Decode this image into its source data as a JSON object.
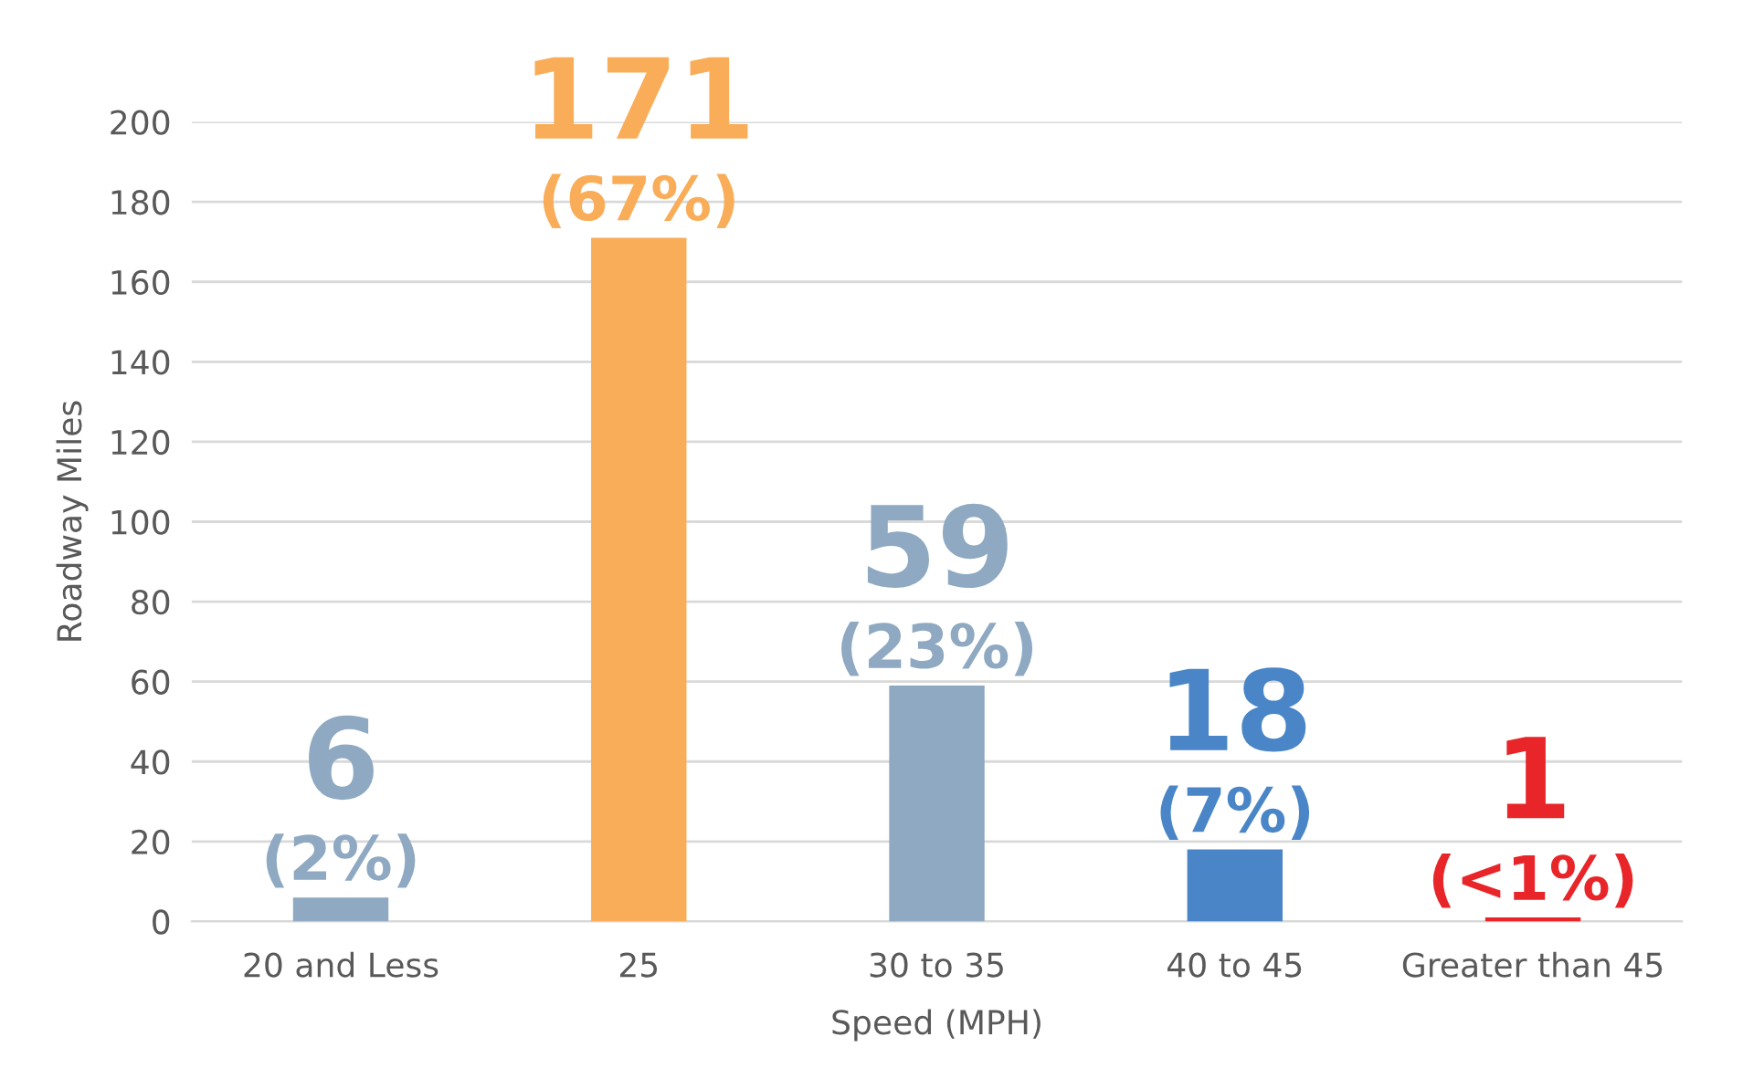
{
  "chart_data": {
    "type": "bar",
    "xlabel": "Speed (MPH)",
    "ylabel": "Roadway Miles",
    "categories": [
      "20 and Less",
      "25",
      "30 to 35",
      "40 to 45",
      "Greater than 45"
    ],
    "values": [
      6,
      171,
      59,
      18,
      1
    ],
    "colors": [
      "#8ea9c1",
      "#f9ad58",
      "#8ea9c1",
      "#4a86c7",
      "#e8262a"
    ],
    "value_labels": [
      "6\n(2%)",
      "171\n(67%)",
      "59\n(23%)",
      "18\n(7%)",
      "1\n(<1%)"
    ],
    "ylim": [
      0,
      200
    ],
    "yticks": [
      0,
      20,
      40,
      60,
      80,
      100,
      120,
      140,
      160,
      180,
      200
    ],
    "grid": "y",
    "legend": false
  }
}
